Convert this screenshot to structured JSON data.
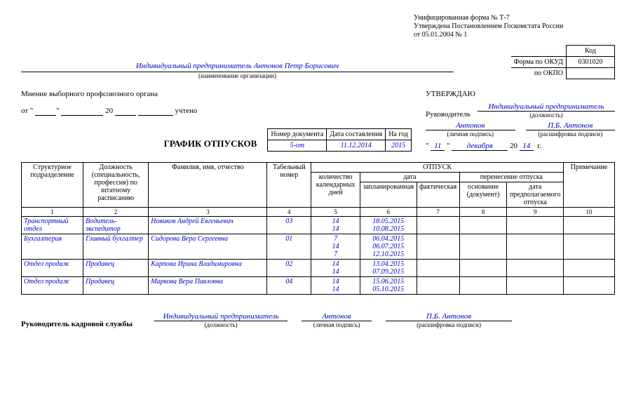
{
  "form_info": {
    "line1": "Унифицированная форма № Т-7",
    "line2": "Утверждена Постановлением Госкомстата России",
    "line3": "от 05.01.2004 № 1"
  },
  "codes": {
    "kod_label": "Код",
    "okud_label": "Форма по ОКУД",
    "okud_value": "0301020",
    "okpo_label": "по ОКПО"
  },
  "organization": {
    "name": "Индивидуальный предприниматель Антонов Петр Борисович",
    "sub": "(наименование организации)"
  },
  "opinion": {
    "label": "Мнение выборного профсоюзного органа",
    "ot": "от \"",
    "year20": "20",
    "uchteno": "учтено"
  },
  "approval": {
    "title": "УТВЕРЖДАЮ",
    "leader_label": "Руководитель",
    "position": "Индивидуальный предприниматель",
    "position_sub": "(должность)",
    "signature": "Антонов",
    "signature_sub": "(личная подпись)",
    "decoded": "П.Б. Антонов",
    "decoded_sub": "(расшифровка подписи)",
    "day": "11",
    "month": "декабря",
    "year_prefix": "20",
    "year": "14",
    "year_suffix": "г."
  },
  "doc_header": {
    "title": "ГРАФИК ОТПУСКОВ",
    "num_label": "Номер документа",
    "num_value": "5-от",
    "date_label": "Дата составления",
    "date_value": "11.12.2014",
    "year_label": "На год",
    "year_value": "2015"
  },
  "table_headers": {
    "h1": "Структурное подразделение",
    "h2": "Должность (специальность, профессия) по штатному расписанию",
    "h3": "Фамилия, имя, отчество",
    "h4": "Табельный номер",
    "otpusk": "ОТПУСК",
    "h5": "количество календарных дней",
    "data_group": "дата",
    "h6": "запланированная",
    "h7": "фактическая",
    "perenos_group": "перенесение отпуска",
    "h8": "основание (документ)",
    "h9": "дата предполагаемого отпуска",
    "h10": "Примечание",
    "nums": [
      "1",
      "2",
      "3",
      "4",
      "5",
      "6",
      "7",
      "8",
      "9",
      "10"
    ]
  },
  "rows": [
    {
      "dept": "Транспортный отдел",
      "position": "Водитель-экспедитор",
      "name": "Новиков Андрей Евгеньевич",
      "tab": "03",
      "days": [
        "14",
        "14"
      ],
      "dates": [
        "18.05.2015",
        "10.08.2015"
      ]
    },
    {
      "dept": "Бухгалтерия",
      "position": "Главный бухгалтер",
      "name": "Сидорова Вера Сергеевна",
      "tab": "01",
      "days": [
        "7",
        "14",
        "7"
      ],
      "dates": [
        "06.04.2015",
        "06.07.2015",
        "12.10.2015"
      ]
    },
    {
      "dept": "Отдел продаж",
      "position": "Продавец",
      "name": "Карпова Ирина Владимировна",
      "tab": "02",
      "days": [
        "14",
        "14"
      ],
      "dates": [
        "13.04.2015",
        "07.09.2015"
      ]
    },
    {
      "dept": "Отдел продаж",
      "position": "Продавец",
      "name": "Маркова Вера Павловна",
      "tab": "04",
      "days": [
        "14",
        "14"
      ],
      "dates": [
        "15.06.2015",
        "05.10.2015"
      ]
    }
  ],
  "footer": {
    "label": "Руководитель кадровой службы",
    "position": "Индивидуальный предприниматель",
    "position_sub": "(должность)",
    "signature": "Антонов",
    "signature_sub": "(личная подпись)",
    "decoded": "П.Б. Антонов",
    "decoded_sub": "(расшифровка подписи)"
  }
}
